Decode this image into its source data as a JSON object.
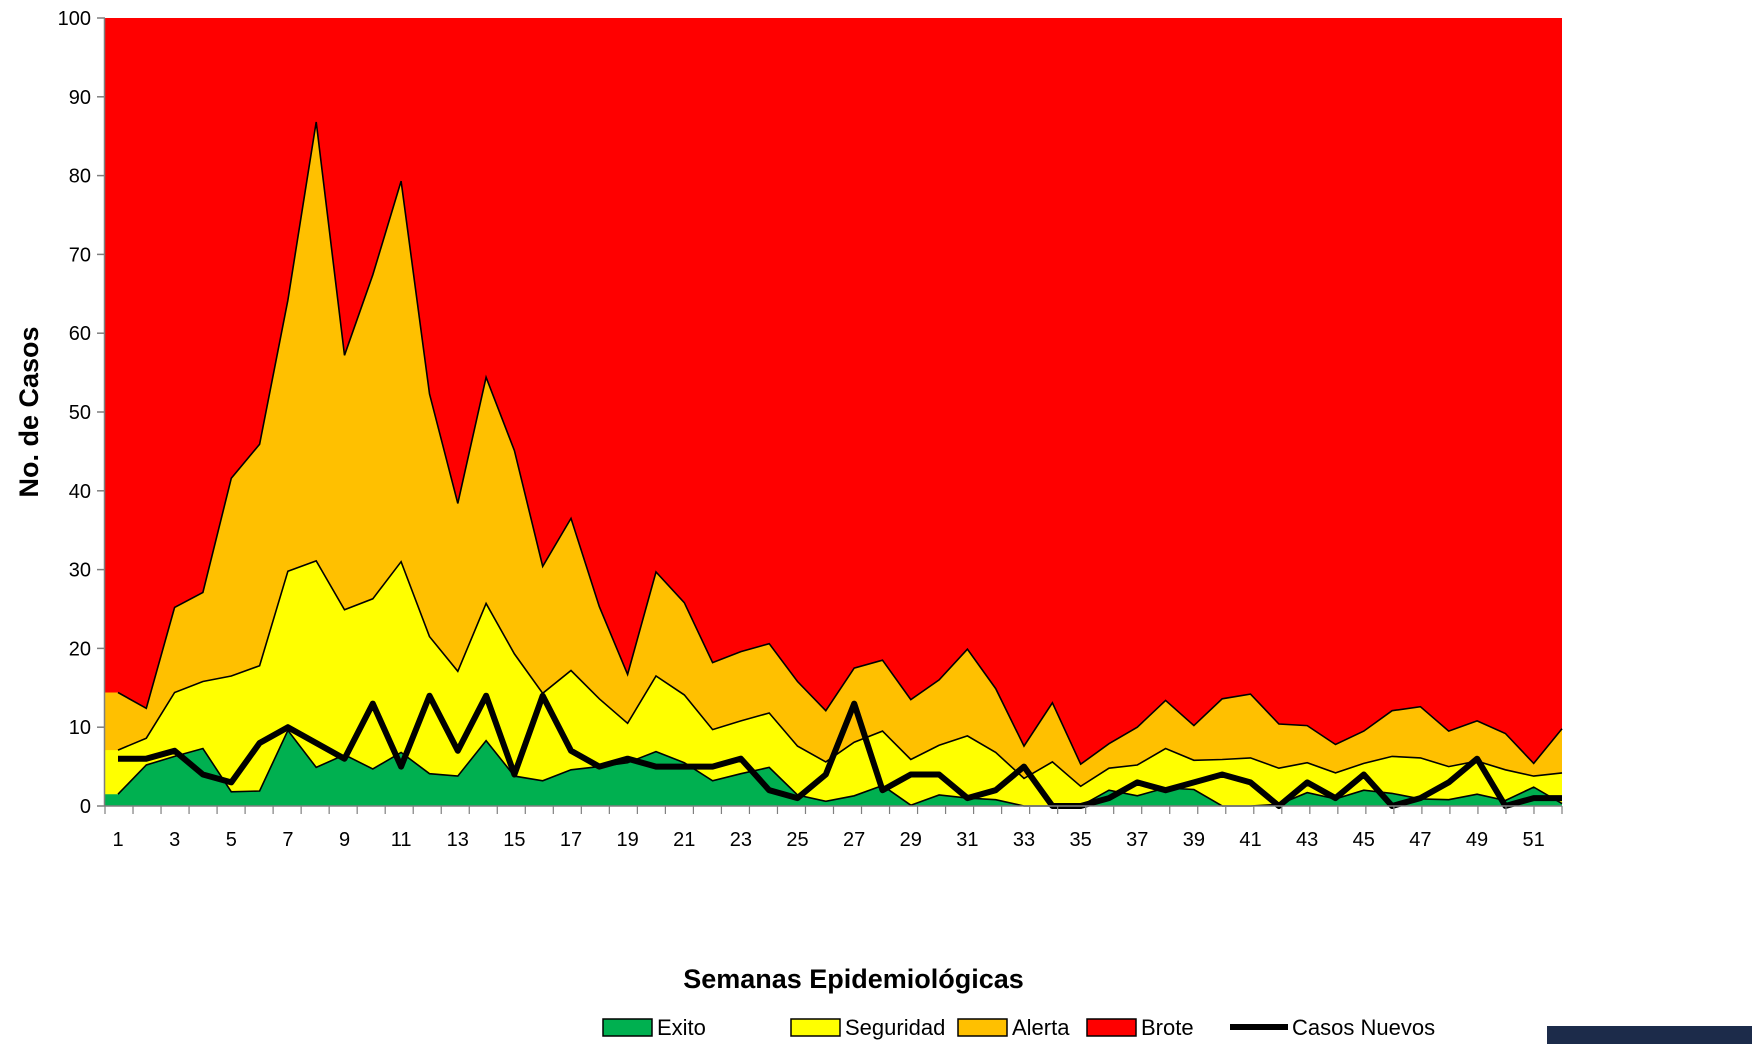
{
  "chart_data": {
    "type": "area",
    "xlabel": "Semanas Epidemiológicas",
    "ylabel": "No. de Casos",
    "ylim": [
      0,
      100
    ],
    "yticks": [
      0,
      10,
      20,
      30,
      40,
      50,
      60,
      70,
      80,
      90,
      100
    ],
    "x": [
      1,
      2,
      3,
      4,
      5,
      6,
      7,
      8,
      9,
      10,
      11,
      12,
      13,
      14,
      15,
      16,
      17,
      18,
      19,
      20,
      21,
      22,
      23,
      24,
      25,
      26,
      27,
      28,
      29,
      30,
      31,
      32,
      33,
      34,
      35,
      36,
      37,
      38,
      39,
      40,
      41,
      42,
      43,
      44,
      45,
      46,
      47,
      48,
      49,
      50,
      51,
      52
    ],
    "xtick_labels": [
      "1",
      "3",
      "5",
      "7",
      "9",
      "11",
      "13",
      "15",
      "17",
      "19",
      "21",
      "23",
      "25",
      "27",
      "29",
      "31",
      "33",
      "35",
      "37",
      "39",
      "41",
      "43",
      "45",
      "47",
      "49",
      "51"
    ],
    "stacked_boundaries": true,
    "series": [
      {
        "name": "Exito",
        "kind": "area",
        "color": "#00b050",
        "values": [
          1.5,
          5.2,
          6.3,
          7.3,
          1.8,
          1.9,
          9.6,
          4.9,
          6.5,
          4.7,
          6.8,
          4.1,
          3.8,
          8.3,
          3.8,
          3.2,
          4.6,
          5.0,
          5.5,
          6.9,
          5.5,
          3.2,
          4.1,
          4.9,
          1.4,
          0.6,
          1.3,
          2.6,
          0.1,
          1.4,
          1.0,
          0.8,
          0.0,
          0.0,
          0.0,
          2.0,
          1.3,
          2.3,
          2.1,
          0.0,
          0.0,
          0.2,
          1.7,
          0.9,
          2.0,
          1.6,
          0.9,
          0.8,
          1.5,
          0.7,
          2.4,
          0.3
        ]
      },
      {
        "name": "Seguridad",
        "kind": "area",
        "color": "#ffff00",
        "values": [
          7.1,
          8.6,
          14.4,
          15.8,
          16.5,
          17.8,
          29.8,
          31.1,
          24.9,
          26.3,
          31.0,
          21.5,
          17.1,
          25.7,
          19.3,
          14.3,
          17.2,
          13.6,
          10.5,
          16.5,
          14.1,
          9.7,
          10.8,
          11.8,
          7.6,
          5.6,
          8.1,
          9.5,
          5.9,
          7.7,
          8.9,
          6.8,
          3.5,
          5.6,
          2.5,
          4.8,
          5.2,
          7.3,
          5.8,
          5.9,
          6.1,
          4.8,
          5.5,
          4.2,
          5.4,
          6.3,
          6.1,
          5.0,
          5.7,
          4.6,
          3.8,
          4.2
        ]
      },
      {
        "name": "Alerta",
        "kind": "area",
        "color": "#ffc000",
        "values": [
          14.4,
          12.4,
          25.2,
          27.1,
          41.6,
          45.9,
          64.2,
          86.8,
          57.2,
          67.4,
          79.3,
          52.3,
          38.4,
          54.4,
          45.1,
          30.4,
          36.5,
          25.3,
          16.7,
          29.7,
          25.8,
          18.2,
          19.6,
          20.6,
          15.8,
          12.1,
          17.5,
          18.5,
          13.5,
          16.0,
          19.9,
          14.9,
          7.6,
          13.1,
          5.3,
          7.9,
          10.0,
          13.4,
          10.2,
          13.6,
          14.2,
          10.4,
          10.2,
          7.8,
          9.5,
          12.1,
          12.6,
          9.5,
          10.8,
          9.2,
          5.4,
          9.8
        ]
      },
      {
        "name": "Brote",
        "kind": "area",
        "color": "#ff0000",
        "values": [
          100,
          100,
          100,
          100,
          100,
          100,
          100,
          100,
          100,
          100,
          100,
          100,
          100,
          100,
          100,
          100,
          100,
          100,
          100,
          100,
          100,
          100,
          100,
          100,
          100,
          100,
          100,
          100,
          100,
          100,
          100,
          100,
          100,
          100,
          100,
          100,
          100,
          100,
          100,
          100,
          100,
          100,
          100,
          100,
          100,
          100,
          100,
          100,
          100,
          100,
          100,
          100
        ]
      },
      {
        "name": "Casos Nuevos",
        "kind": "line",
        "color": "#000000",
        "values": [
          6,
          6,
          7,
          4,
          3,
          8,
          10,
          8,
          6,
          13,
          5,
          14,
          7,
          14,
          4,
          14,
          7,
          5,
          6,
          5,
          5,
          5,
          6,
          2,
          1,
          4,
          13,
          2,
          4,
          4,
          1,
          2,
          5,
          0,
          0,
          1,
          3,
          2,
          3,
          4,
          3,
          0,
          3,
          1,
          4,
          0,
          1,
          3,
          6,
          0,
          1,
          1
        ]
      }
    ],
    "legend_position": "bottom"
  }
}
